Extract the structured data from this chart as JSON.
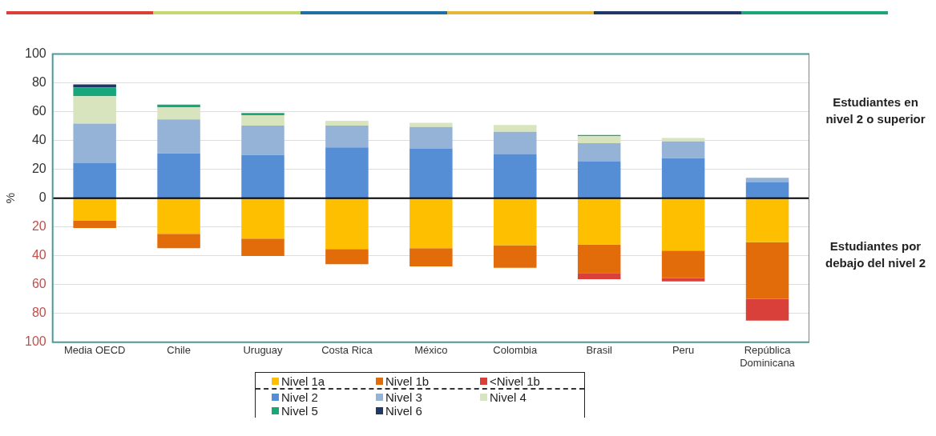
{
  "chart_data": {
    "type": "bar",
    "stacked": true,
    "ylabel": "%",
    "categories": [
      "Media OECD",
      "Chile",
      "Uruguay",
      "Costa Rica",
      "México",
      "Colombia",
      "Brasil",
      "Peru",
      "República Dominicana"
    ],
    "series": [
      {
        "name": "Nivel 1a",
        "color": "#fdbf00",
        "values": [
          -15.5,
          -24.7,
          -28,
          -35.3,
          -34.7,
          -32.7,
          -32.3,
          -36.4,
          -30.5
        ]
      },
      {
        "name": "Nivel 1b",
        "color": "#e36c0a",
        "values": [
          -5.2,
          -10,
          -12.2,
          -10.5,
          -12.6,
          -15.7,
          -19.6,
          -19.2,
          -39.3
        ]
      },
      {
        "name": "<Nivel 1b",
        "color": "#d9403a",
        "values": [
          null,
          null,
          null,
          null,
          null,
          null,
          -4.3,
          -2.2,
          -15.2
        ]
      },
      {
        "name": "Nivel 2",
        "color": "#558ed5",
        "values": [
          24.6,
          31,
          30,
          35.3,
          34.5,
          30.6,
          25.6,
          27.7,
          11.2
        ]
      },
      {
        "name": "Nivel 3",
        "color": "#95b3d7",
        "values": [
          27.1,
          23.6,
          20.4,
          15.1,
          14.9,
          15.5,
          12.6,
          11.7,
          2.9
        ]
      },
      {
        "name": "Nivel 4",
        "color": "#d7e4bd",
        "values": [
          19,
          8.4,
          7.2,
          3.3,
          2.9,
          4.7,
          4.8,
          2.3,
          null
        ]
      },
      {
        "name": "Nivel 5",
        "color": "#17a77a",
        "values": [
          6.2,
          2,
          1.5,
          null,
          null,
          null,
          0.8,
          null,
          null
        ]
      },
      {
        "name": "Nivel 6",
        "color": "#1f3864",
        "values": [
          2,
          null,
          null,
          null,
          null,
          null,
          null,
          null,
          null
        ]
      }
    ],
    "ylim": [
      -100,
      100
    ],
    "yticks": [
      {
        "value": -100,
        "label": "100"
      },
      {
        "value": -80,
        "label": "80"
      },
      {
        "value": -60,
        "label": "60"
      },
      {
        "value": -40,
        "label": "40"
      },
      {
        "value": -20,
        "label": "20"
      },
      0,
      20,
      40,
      60,
      80,
      100
    ],
    "ref_lines": [
      {
        "axis": "y",
        "value": 0,
        "color": "#000000"
      }
    ],
    "grid": "y",
    "legend": "bottom",
    "annotations": [
      {
        "text": "Estudiantes en nivel 2 o superior"
      },
      {
        "text": "Estudiantes por debajo del nivel 2"
      }
    ]
  }
}
